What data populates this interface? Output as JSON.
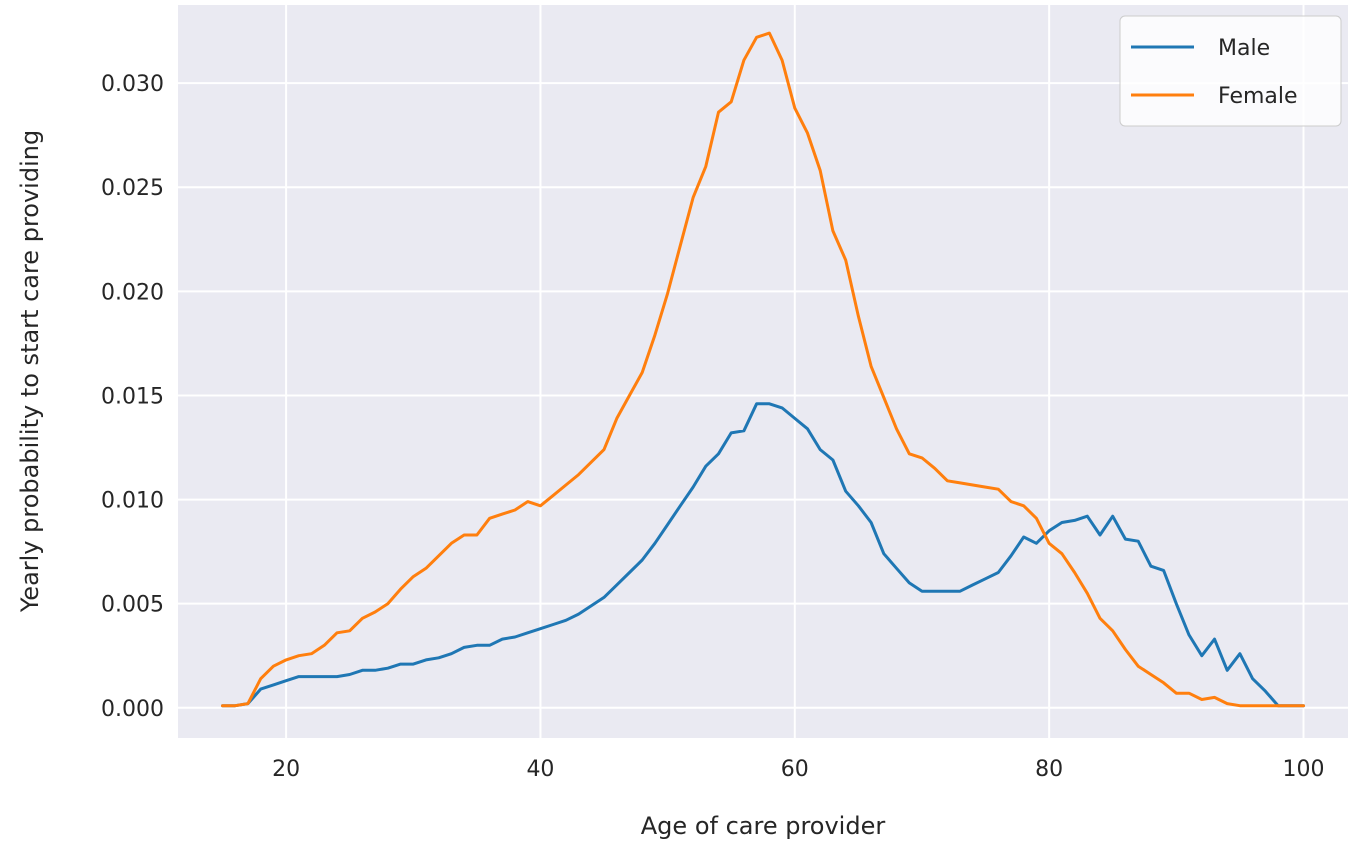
{
  "chart_data": {
    "type": "line",
    "title": "",
    "xlabel": "Age of care provider",
    "ylabel": "Yearly probability to start care providing",
    "xlim": [
      11.5,
      103.5
    ],
    "ylim": [
      -0.00145,
      0.03375
    ],
    "xticks": [
      20,
      40,
      60,
      80,
      100
    ],
    "yticks": [
      0.0,
      0.005,
      0.01,
      0.015,
      0.02,
      0.025,
      0.03
    ],
    "xtick_labels": [
      "20",
      "40",
      "60",
      "80",
      "100"
    ],
    "ytick_labels": [
      "0.000",
      "0.005",
      "0.010",
      "0.015",
      "0.020",
      "0.025",
      "0.030"
    ],
    "grid": true,
    "legend_position": "top-right",
    "background": "#eaeaf2",
    "series": [
      {
        "name": "Male",
        "color": "#1f77b4",
        "x": [
          15,
          16,
          17,
          18,
          19,
          20,
          21,
          22,
          23,
          24,
          25,
          26,
          27,
          28,
          29,
          30,
          31,
          32,
          33,
          34,
          35,
          36,
          37,
          38,
          39,
          40,
          41,
          42,
          43,
          44,
          45,
          46,
          47,
          48,
          49,
          50,
          51,
          52,
          53,
          54,
          55,
          56,
          57,
          58,
          59,
          60,
          61,
          62,
          63,
          64,
          65,
          66,
          67,
          68,
          69,
          70,
          71,
          72,
          73,
          74,
          75,
          76,
          77,
          78,
          79,
          80,
          81,
          82,
          83,
          84,
          85,
          86,
          87,
          88,
          89,
          90,
          91,
          92,
          93,
          94,
          95,
          96,
          97,
          98,
          99,
          100
        ],
        "y": [
          0.0001,
          0.0001,
          0.0002,
          0.0009,
          0.0011,
          0.0013,
          0.0015,
          0.0015,
          0.0015,
          0.0015,
          0.0016,
          0.0018,
          0.0018,
          0.0019,
          0.0021,
          0.0021,
          0.0023,
          0.0024,
          0.0026,
          0.0029,
          0.003,
          0.003,
          0.0033,
          0.0034,
          0.0036,
          0.0038,
          0.004,
          0.0042,
          0.0045,
          0.0049,
          0.0053,
          0.0059,
          0.0065,
          0.0071,
          0.0079,
          0.0088,
          0.0097,
          0.0106,
          0.0116,
          0.0122,
          0.0132,
          0.0133,
          0.0146,
          0.0146,
          0.0144,
          0.0139,
          0.0134,
          0.0124,
          0.0119,
          0.0104,
          0.0097,
          0.0089,
          0.0074,
          0.0067,
          0.006,
          0.0056,
          0.0056,
          0.0056,
          0.0056,
          0.0059,
          0.0062,
          0.0065,
          0.0073,
          0.0082,
          0.0079,
          0.0085,
          0.0089,
          0.009,
          0.0092,
          0.0083,
          0.0092,
          0.0081,
          0.008,
          0.0068,
          0.0066,
          0.005,
          0.0035,
          0.0025,
          0.0033,
          0.0018,
          0.0026,
          0.0014,
          0.0008,
          0.0001,
          0.0001,
          0.0001
        ]
      },
      {
        "name": "Female",
        "color": "#ff7f0e",
        "x": [
          15,
          16,
          17,
          18,
          19,
          20,
          21,
          22,
          23,
          24,
          25,
          26,
          27,
          28,
          29,
          30,
          31,
          32,
          33,
          34,
          35,
          36,
          37,
          38,
          39,
          40,
          41,
          42,
          43,
          44,
          45,
          46,
          47,
          48,
          49,
          50,
          51,
          52,
          53,
          54,
          55,
          56,
          57,
          58,
          59,
          60,
          61,
          62,
          63,
          64,
          65,
          66,
          67,
          68,
          69,
          70,
          71,
          72,
          73,
          74,
          75,
          76,
          77,
          78,
          79,
          80,
          81,
          82,
          83,
          84,
          85,
          86,
          87,
          88,
          89,
          90,
          91,
          92,
          93,
          94,
          95,
          96,
          97,
          98,
          99,
          100
        ],
        "y": [
          0.0001,
          0.0001,
          0.0002,
          0.0014,
          0.002,
          0.0023,
          0.0025,
          0.0026,
          0.003,
          0.0036,
          0.0037,
          0.0043,
          0.0046,
          0.005,
          0.0057,
          0.0063,
          0.0067,
          0.0073,
          0.0079,
          0.0083,
          0.0083,
          0.0091,
          0.0093,
          0.0095,
          0.0099,
          0.0097,
          0.0102,
          0.0107,
          0.0112,
          0.0118,
          0.0124,
          0.0139,
          0.015,
          0.0161,
          0.0179,
          0.0199,
          0.0222,
          0.0245,
          0.026,
          0.0286,
          0.0291,
          0.0311,
          0.0322,
          0.0324,
          0.0311,
          0.0288,
          0.0276,
          0.0258,
          0.0229,
          0.0215,
          0.0188,
          0.0164,
          0.0149,
          0.0134,
          0.0122,
          0.012,
          0.0115,
          0.0109,
          0.0108,
          0.0107,
          0.0106,
          0.0105,
          0.0099,
          0.0097,
          0.0091,
          0.0079,
          0.0074,
          0.0065,
          0.0055,
          0.0043,
          0.0037,
          0.0028,
          0.002,
          0.0016,
          0.0012,
          0.0007,
          0.0007,
          0.0004,
          0.0005,
          0.0002,
          0.0001,
          0.0001,
          0.0001,
          0.0001,
          0.0001,
          0.0001
        ]
      }
    ]
  }
}
